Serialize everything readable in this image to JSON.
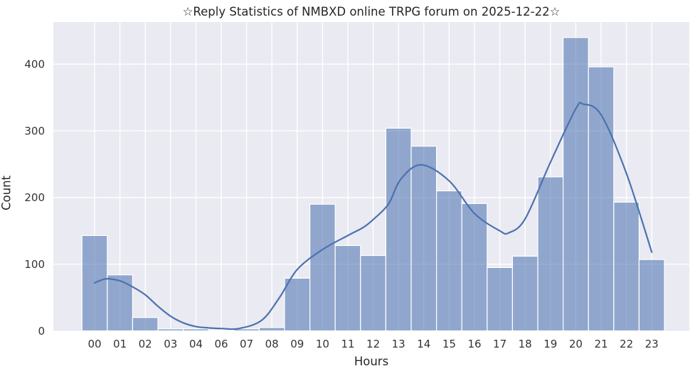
{
  "chart_data": {
    "type": "bar",
    "subtype": "histogram_with_kde",
    "title": "☆Reply Statistics of NMBXD online TRPG forum on 2025-12-22☆",
    "xlabel": "Hours",
    "ylabel": "Count",
    "categories": [
      "00",
      "01",
      "02",
      "03",
      "04",
      "06",
      "07",
      "08",
      "09",
      "10",
      "11",
      "12",
      "13",
      "14",
      "15",
      "16",
      "17",
      "18",
      "19",
      "20",
      "21",
      "22",
      "23"
    ],
    "values": [
      143,
      84,
      20,
      3,
      3,
      1,
      3,
      5,
      79,
      190,
      128,
      113,
      304,
      277,
      210,
      191,
      95,
      112,
      231,
      440,
      396,
      193,
      107
    ],
    "yticks": [
      0,
      100,
      200,
      300,
      400
    ],
    "ylim": [
      0,
      463
    ],
    "grid": true,
    "legend_position": "none",
    "kde_overlay": {
      "type": "line",
      "name": "kde-curve",
      "points": [
        [
          0,
          72
        ],
        [
          0.45,
          78
        ],
        [
          1,
          75
        ],
        [
          1.5,
          66
        ],
        [
          2,
          54
        ],
        [
          2.5,
          37
        ],
        [
          3,
          22
        ],
        [
          3.5,
          12
        ],
        [
          4,
          6.5
        ],
        [
          4.5,
          4.5
        ],
        [
          5,
          3.5
        ],
        [
          5.7,
          3.5
        ],
        [
          6.6,
          16
        ],
        [
          7.3,
          50
        ],
        [
          8,
          92
        ],
        [
          9,
          122
        ],
        [
          10,
          143
        ],
        [
          10.6,
          155
        ],
        [
          11,
          167
        ],
        [
          11.6,
          190
        ],
        [
          12.1,
          228
        ],
        [
          12.9,
          249
        ],
        [
          14,
          225
        ],
        [
          15,
          176
        ],
        [
          16,
          150
        ],
        [
          16.35,
          147
        ],
        [
          17,
          168
        ],
        [
          18,
          253
        ],
        [
          19,
          333
        ],
        [
          19.3,
          340
        ],
        [
          20,
          324
        ],
        [
          21,
          236
        ],
        [
          22,
          118
        ]
      ]
    }
  },
  "style": {
    "plot_background": "#eaeaf2",
    "figure_background": "#ffffff",
    "gridline_color": "#ffffff",
    "bar_fill": "rgba(76,114,176,0.57)",
    "bar_edge": "#ffffff",
    "kde_line_color": "#4c72b0",
    "text_color": "#262626",
    "tick_text_color": "#333333"
  }
}
